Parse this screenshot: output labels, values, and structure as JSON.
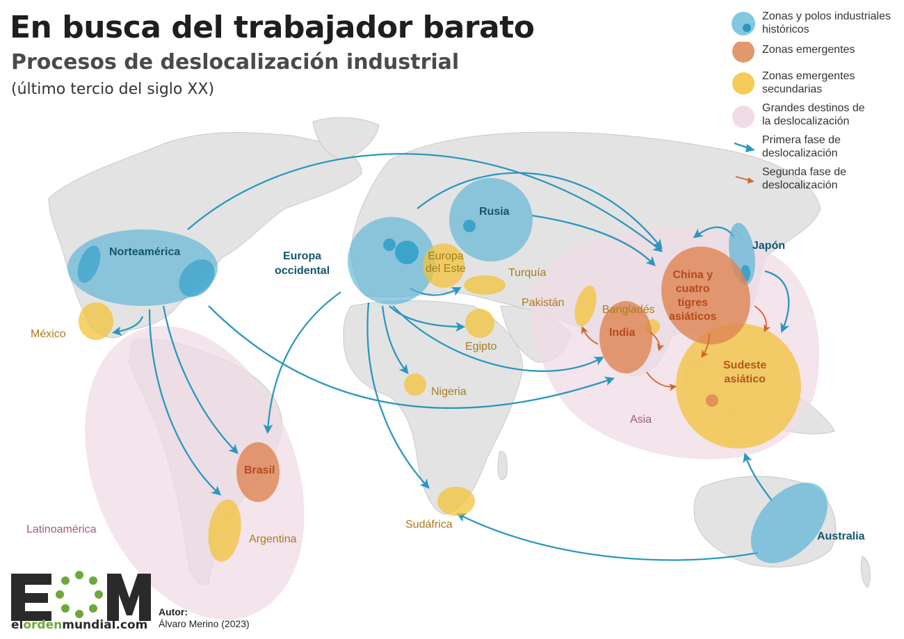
{
  "header": {
    "title": "En busca del trabajador barato",
    "subtitle": "Procesos de deslocalización industrial",
    "period": "(último tercio del siglo XX)"
  },
  "legend": [
    {
      "key": "historic",
      "label": "Zonas y polos industriales históricos",
      "color": "#5ab4d6"
    },
    {
      "key": "emerging",
      "label": "Zonas emergentes",
      "color": "#dd8552"
    },
    {
      "key": "secondary",
      "label": "Zonas emergentes secundarias",
      "color": "#f2c33a"
    },
    {
      "key": "destinations",
      "label": "Grandes destinos de la deslocalización",
      "color": "#f0dbe6"
    },
    {
      "key": "phase1",
      "label": "Primera fase de deslocalización",
      "color": "#2b97be"
    },
    {
      "key": "phase2",
      "label": "Segunda fase de deslocalización",
      "color": "#d0652f"
    }
  ],
  "regions": {
    "historic": [
      "Norteamérica",
      "Europa occidental",
      "Rusia",
      "Japón",
      "Australia"
    ],
    "emerging": [
      "China y cuatro tigres asiáticos",
      "India",
      "Brasil",
      "Sudeste asiático"
    ],
    "secondary": [
      "México",
      "Europa del Este",
      "Turquía",
      "Pakistán",
      "Bangladés",
      "Egipto",
      "Nigeria",
      "Argentina",
      "Sudáfrica"
    ],
    "destinations": [
      "Latinoamérica",
      "Asia"
    ]
  },
  "labels": {
    "norteamerica": "Norteamérica",
    "europa_occ": "Europa occidental",
    "rusia": "Rusia",
    "japon": "Japón",
    "australia": "Australia",
    "china": "China y cuatro tigres asiáticos",
    "india": "India",
    "brasil": "Brasil",
    "sudeste": "Sudeste asiático",
    "mexico": "México",
    "europa_este": "Europa del Este",
    "turquia": "Turquía",
    "pakistan": "Pakistán",
    "banglades": "Bangladés",
    "egipto": "Egipto",
    "nigeria": "Nigeria",
    "argentina": "Argentina",
    "sudafrica": "Sudáfrica",
    "latinoamerica": "Latinoamérica",
    "asia": "Asia"
  },
  "flows": {
    "phase1": [
      [
        "Norteamérica",
        "México"
      ],
      [
        "Norteamérica",
        "Brasil"
      ],
      [
        "Norteamérica",
        "Argentina"
      ],
      [
        "Norteamérica",
        "China y cuatro tigres asiáticos"
      ],
      [
        "Norteamérica",
        "Sudeste asiático"
      ],
      [
        "Europa occidental",
        "Brasil"
      ],
      [
        "Europa occidental",
        "Sudáfrica"
      ],
      [
        "Europa occidental",
        "Nigeria"
      ],
      [
        "Europa occidental",
        "Egipto"
      ],
      [
        "Europa occidental",
        "Turquía"
      ],
      [
        "Europa occidental",
        "India"
      ],
      [
        "Europa occidental",
        "China y cuatro tigres asiáticos"
      ],
      [
        "Rusia",
        "China y cuatro tigres asiáticos"
      ],
      [
        "Japón",
        "China y cuatro tigres asiáticos"
      ],
      [
        "Japón",
        "Sudeste asiático"
      ],
      [
        "Australia",
        "Sudeste asiático"
      ],
      [
        "Australia",
        "Sudáfrica"
      ]
    ],
    "phase2": [
      [
        "China y cuatro tigres asiáticos",
        "Sudeste asiático"
      ],
      [
        "India",
        "Sudeste asiático"
      ],
      [
        "India",
        "Pakistán"
      ],
      [
        "India",
        "Bangladés"
      ]
    ]
  },
  "logo": {
    "letters": "EOM",
    "url_parts": [
      "el",
      "orden",
      "mundial",
      ".com"
    ]
  },
  "author": {
    "label": "Autor:",
    "name": "Álvaro Merino (2023)"
  }
}
